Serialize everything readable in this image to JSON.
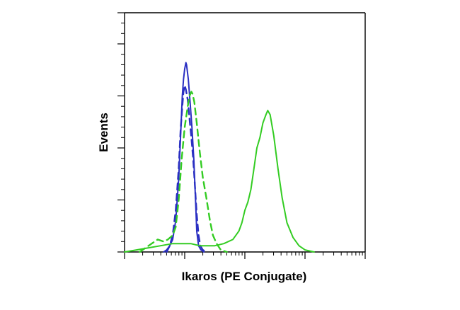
{
  "chart_data": {
    "type": "line",
    "title": "",
    "xlabel": "Ikaros (PE Conjugate)",
    "ylabel": "Events",
    "x_scale": "log",
    "xlim": [
      -1,
      3
    ],
    "ylim": [
      0,
      100
    ],
    "grid": false,
    "legend": "none",
    "series": [
      {
        "color": "#2a2fc2",
        "style": "solid",
        "points": [
          [
            -0.35,
            0
          ],
          [
            -0.3,
            1
          ],
          [
            -0.25,
            3
          ],
          [
            -0.2,
            6
          ],
          [
            -0.15,
            15
          ],
          [
            -0.1,
            35
          ],
          [
            -0.07,
            55
          ],
          [
            -0.04,
            75
          ],
          [
            -0.02,
            83
          ],
          [
            0.0,
            88
          ],
          [
            0.02,
            91
          ],
          [
            0.03,
            90
          ],
          [
            0.06,
            83
          ],
          [
            0.09,
            72
          ],
          [
            0.12,
            60
          ],
          [
            0.15,
            45
          ],
          [
            0.18,
            25
          ],
          [
            0.2,
            10
          ],
          [
            0.23,
            3
          ],
          [
            0.27,
            1
          ],
          [
            0.32,
            0
          ]
        ]
      },
      {
        "color": "#2a2fc2",
        "style": "dashed",
        "points": [
          [
            -0.3,
            0
          ],
          [
            -0.25,
            3
          ],
          [
            -0.2,
            8
          ],
          [
            -0.15,
            20
          ],
          [
            -0.1,
            40
          ],
          [
            -0.07,
            58
          ],
          [
            -0.04,
            70
          ],
          [
            -0.02,
            77
          ],
          [
            0.0,
            80
          ],
          [
            0.02,
            78
          ],
          [
            0.05,
            73
          ],
          [
            0.08,
            64
          ],
          [
            0.11,
            55
          ],
          [
            0.14,
            45
          ],
          [
            0.17,
            32
          ],
          [
            0.2,
            18
          ],
          [
            0.23,
            8
          ],
          [
            0.26,
            3
          ],
          [
            0.3,
            1
          ],
          [
            0.36,
            0
          ]
        ]
      },
      {
        "color": "#33cc22",
        "style": "dashed",
        "points": [
          [
            -0.75,
            0
          ],
          [
            -0.65,
            2
          ],
          [
            -0.55,
            4
          ],
          [
            -0.45,
            6
          ],
          [
            -0.35,
            5
          ],
          [
            -0.28,
            6
          ],
          [
            -0.2,
            8
          ],
          [
            -0.15,
            12
          ],
          [
            -0.1,
            25
          ],
          [
            -0.05,
            45
          ],
          [
            0.0,
            60
          ],
          [
            0.05,
            70
          ],
          [
            0.08,
            75
          ],
          [
            0.11,
            77
          ],
          [
            0.13,
            76
          ],
          [
            0.16,
            72
          ],
          [
            0.2,
            62
          ],
          [
            0.25,
            48
          ],
          [
            0.3,
            36
          ],
          [
            0.36,
            26
          ],
          [
            0.42,
            15
          ],
          [
            0.47,
            8
          ],
          [
            0.53,
            4
          ],
          [
            0.6,
            1
          ],
          [
            0.7,
            0
          ]
        ]
      },
      {
        "color": "#33cc22",
        "style": "solid",
        "points": [
          [
            -1.0,
            0
          ],
          [
            -0.8,
            1
          ],
          [
            -0.6,
            2
          ],
          [
            -0.4,
            3
          ],
          [
            -0.2,
            4
          ],
          [
            -0.05,
            4
          ],
          [
            0.1,
            4
          ],
          [
            0.25,
            3
          ],
          [
            0.35,
            3
          ],
          [
            0.5,
            3
          ],
          [
            0.65,
            4
          ],
          [
            0.8,
            6
          ],
          [
            0.9,
            10
          ],
          [
            0.95,
            14
          ],
          [
            1.0,
            20
          ],
          [
            1.05,
            24
          ],
          [
            1.1,
            30
          ],
          [
            1.15,
            40
          ],
          [
            1.2,
            50
          ],
          [
            1.25,
            55
          ],
          [
            1.3,
            62
          ],
          [
            1.35,
            66
          ],
          [
            1.38,
            68
          ],
          [
            1.42,
            66
          ],
          [
            1.48,
            56
          ],
          [
            1.55,
            40
          ],
          [
            1.62,
            26
          ],
          [
            1.7,
            14
          ],
          [
            1.8,
            7
          ],
          [
            1.9,
            3
          ],
          [
            2.0,
            1
          ],
          [
            2.15,
            0
          ]
        ]
      }
    ]
  }
}
